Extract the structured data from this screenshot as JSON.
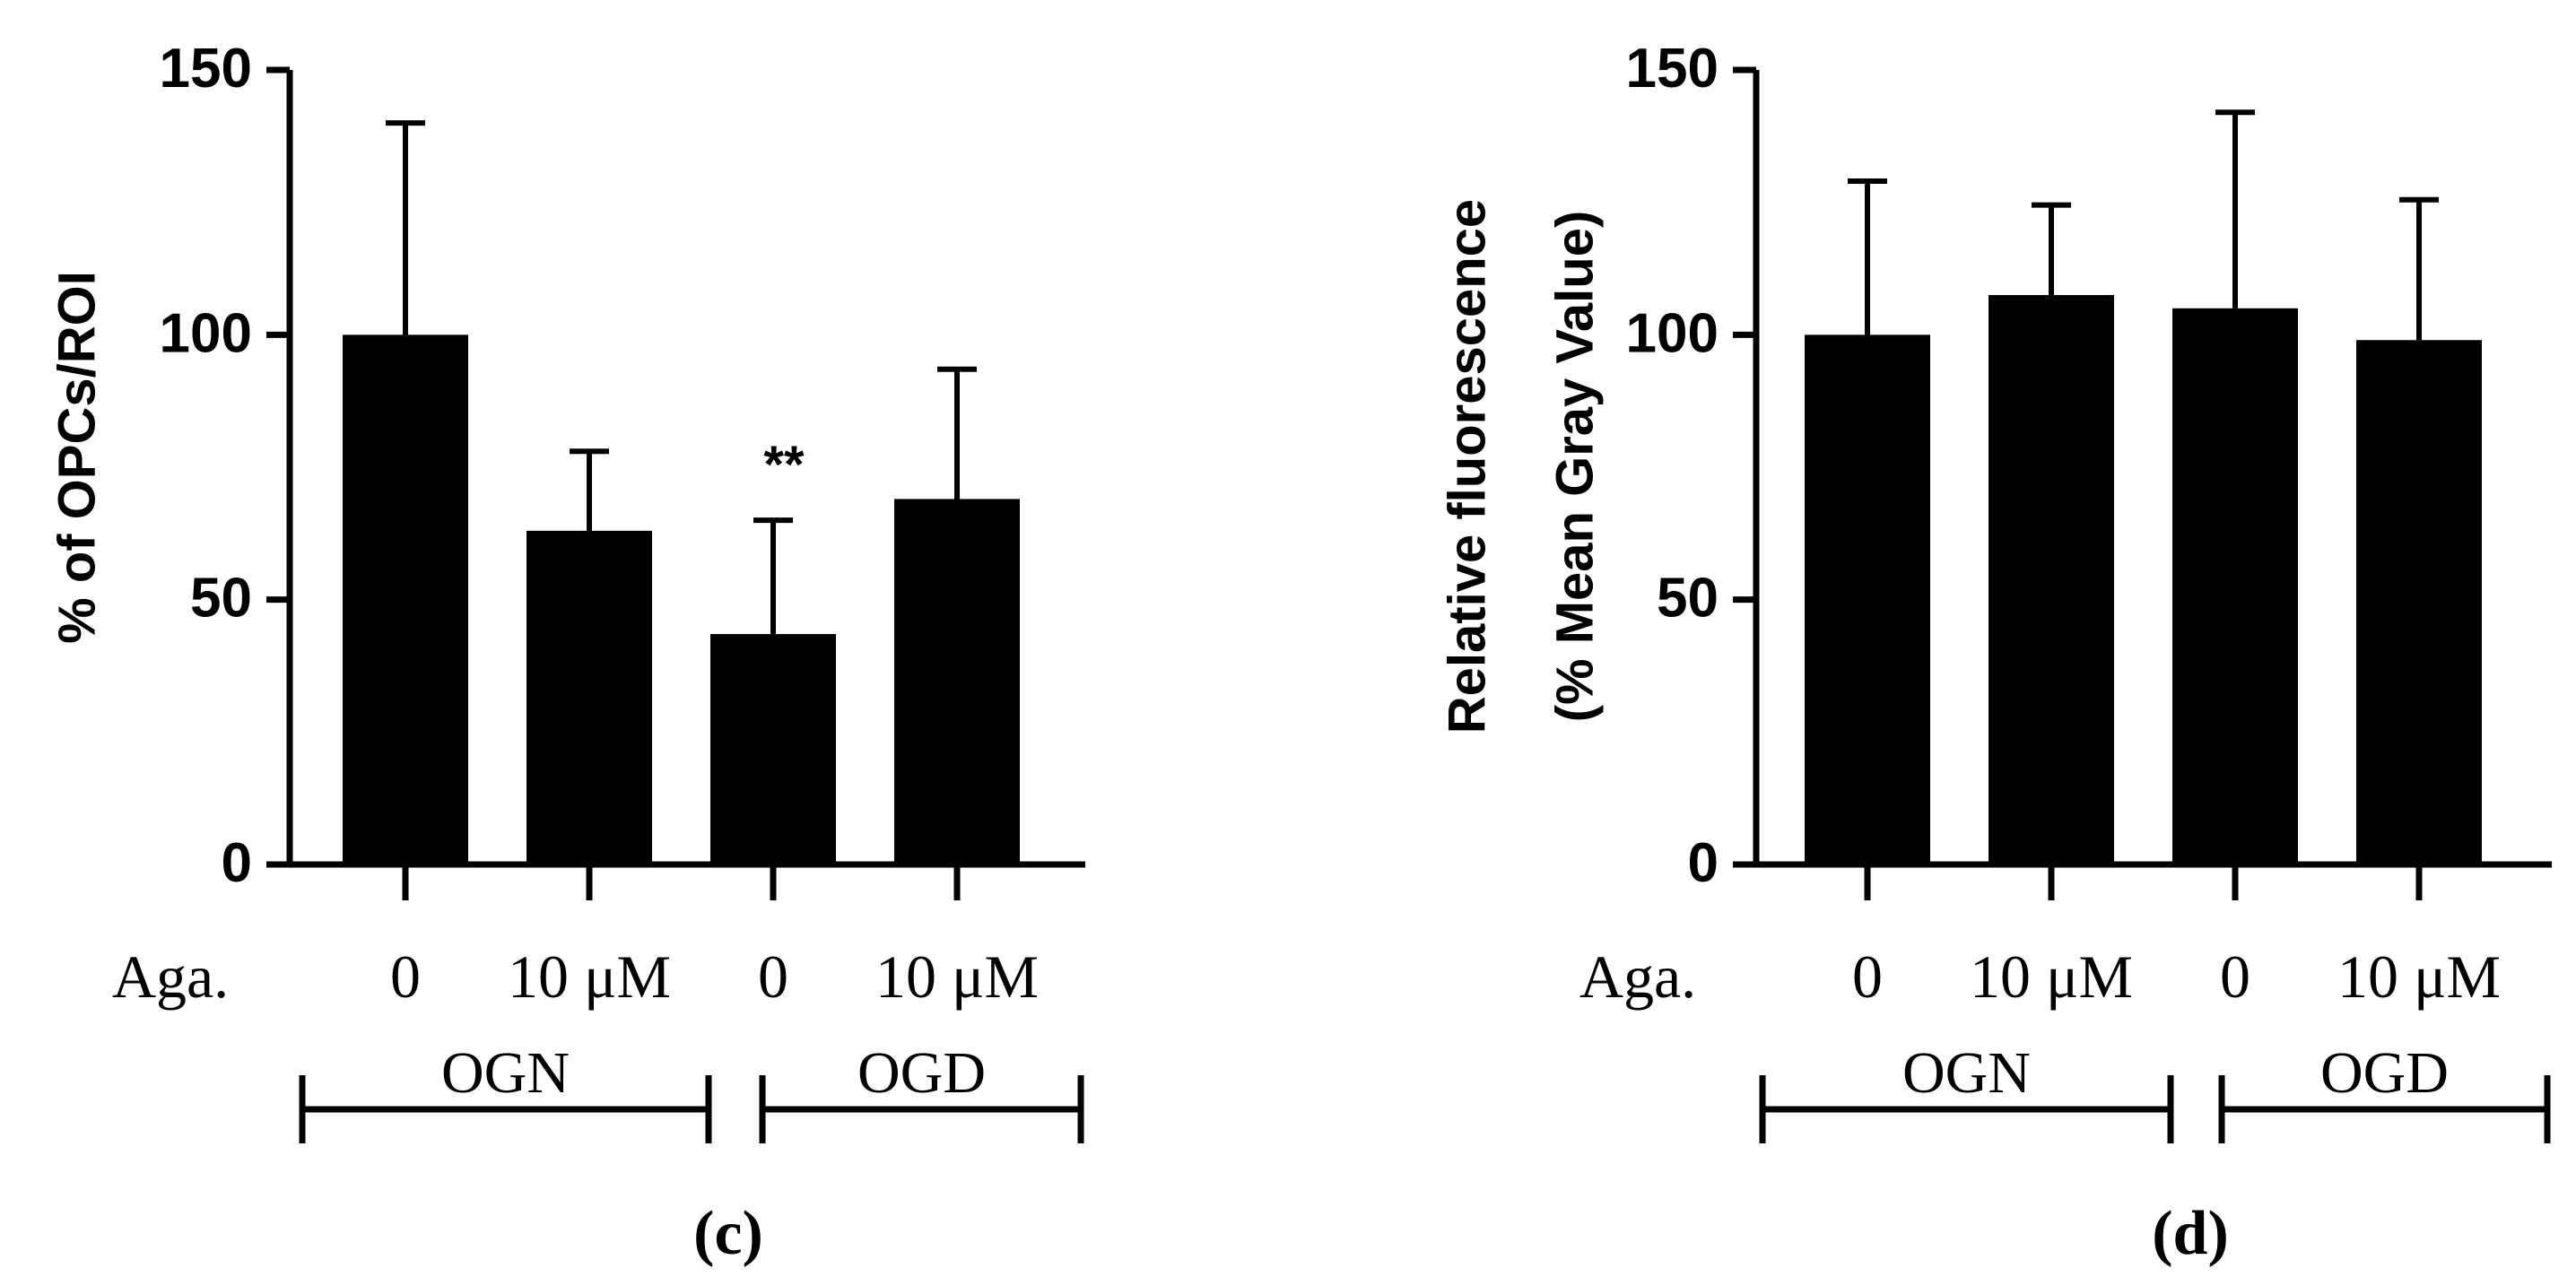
{
  "colors": {
    "bar": "#000000",
    "axis": "#000000",
    "background": "#ffffff"
  },
  "chart_data": [
    {
      "panel_label": "(c)",
      "type": "bar",
      "ylabel_lines": [
        "% of OPCs/ROI"
      ],
      "ylim": [
        0,
        150
      ],
      "yticks": [
        "0",
        "50",
        "100",
        "150"
      ],
      "ytick_values": [
        0,
        50,
        100,
        150
      ],
      "row_label": "Aga.",
      "categories": [
        "0",
        "10 μM",
        "0",
        "10 μM"
      ],
      "values": [
        100,
        63,
        43.5,
        69
      ],
      "errors": [
        40,
        15,
        21.5,
        24.5
      ],
      "annotations": [
        "",
        "",
        "**",
        ""
      ],
      "groups": [
        {
          "label": "OGN",
          "from": 0,
          "to": 1
        },
        {
          "label": "OGD",
          "from": 2,
          "to": 3
        }
      ]
    },
    {
      "panel_label": "(d)",
      "type": "bar",
      "ylabel_lines": [
        "Relative fluorescence",
        "(% Mean Gray Value)"
      ],
      "ylim": [
        0,
        150
      ],
      "yticks": [
        "0",
        "50",
        "100",
        "150"
      ],
      "ytick_values": [
        0,
        50,
        100,
        150
      ],
      "row_label": "Aga.",
      "categories": [
        "0",
        "10 μM",
        "0",
        "10 μM"
      ],
      "values": [
        100,
        107.5,
        105,
        99
      ],
      "errors": [
        29,
        17,
        37,
        26.5
      ],
      "annotations": [
        "",
        "",
        "",
        ""
      ],
      "groups": [
        {
          "label": "OGN",
          "from": 0,
          "to": 1
        },
        {
          "label": "OGD",
          "from": 2,
          "to": 3
        }
      ]
    }
  ]
}
